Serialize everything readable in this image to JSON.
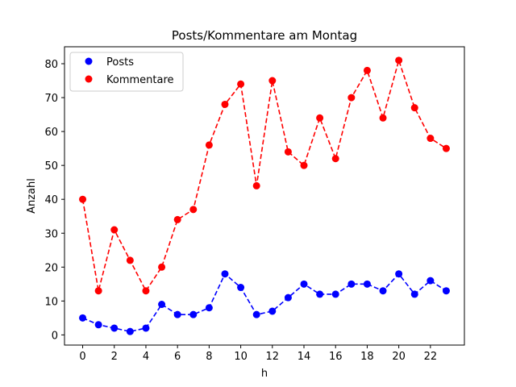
{
  "chart_data": {
    "type": "line",
    "title": "Posts/Kommentare am Montag",
    "xlabel": "h",
    "ylabel": "Anzahl",
    "x": [
      0,
      1,
      2,
      3,
      4,
      5,
      6,
      7,
      8,
      9,
      10,
      11,
      12,
      13,
      14,
      15,
      16,
      17,
      18,
      19,
      20,
      21,
      22,
      23
    ],
    "xlim": [
      -1.15,
      24.15
    ],
    "ylim": [
      -3,
      85
    ],
    "xticks": [
      "0",
      "2",
      "4",
      "6",
      "8",
      "10",
      "12",
      "14",
      "16",
      "18",
      "20",
      "22"
    ],
    "yticks": [
      "0",
      "10",
      "20",
      "30",
      "40",
      "50",
      "60",
      "70",
      "80"
    ],
    "grid": false,
    "legend_position": "top-left",
    "series": [
      {
        "name": "Posts",
        "color": "#0000ff",
        "line_style": "dashed",
        "marker": "circle",
        "values": [
          5,
          3,
          2,
          1,
          2,
          9,
          6,
          6,
          8,
          18,
          14,
          6,
          7,
          11,
          15,
          12,
          12,
          15,
          15,
          13,
          18,
          12,
          16,
          13
        ]
      },
      {
        "name": "Kommentare",
        "color": "#ff0000",
        "line_style": "dashed",
        "marker": "circle",
        "values": [
          40,
          13,
          31,
          22,
          13,
          20,
          34,
          37,
          56,
          68,
          74,
          44,
          75,
          54,
          50,
          64,
          52,
          70,
          78,
          64,
          81,
          67,
          58,
          55
        ]
      }
    ]
  }
}
